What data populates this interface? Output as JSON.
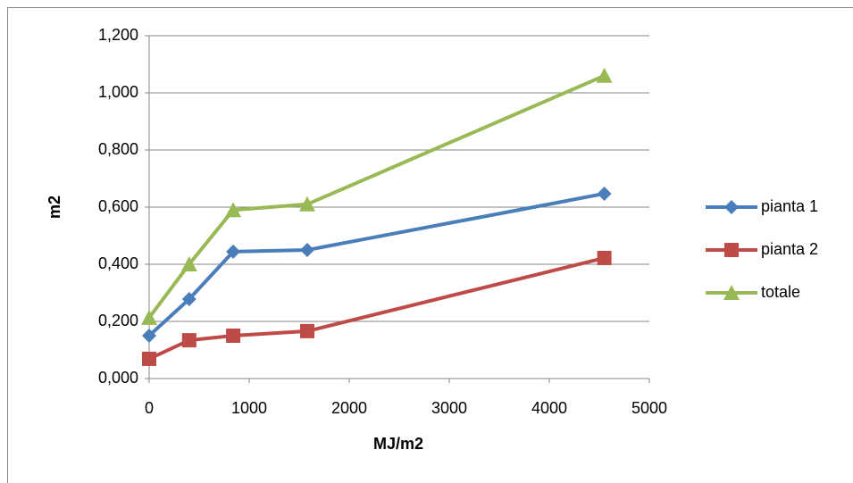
{
  "chart_data": {
    "type": "line",
    "x_label": "MJ/m2",
    "y_label": "m2",
    "x": [
      0,
      400,
      840,
      1580,
      4550
    ],
    "series": [
      {
        "name": "pianta 1",
        "color": "#4a7ebb",
        "marker": "diamond",
        "values": [
          0.15,
          0.278,
          0.444,
          0.45,
          0.647
        ]
      },
      {
        "name": "pianta 2",
        "color": "#be4b48",
        "marker": "square",
        "values": [
          0.069,
          0.134,
          0.15,
          0.166,
          0.422
        ]
      },
      {
        "name": "totale",
        "color": "#98b954",
        "marker": "triangle",
        "values": [
          0.213,
          0.4,
          0.59,
          0.61,
          1.06
        ]
      }
    ],
    "xlim": [
      0,
      5000
    ],
    "xticks": [
      0,
      1000,
      2000,
      3000,
      4000,
      5000
    ],
    "ylim": [
      0,
      1.2
    ],
    "yticks": [
      {
        "value": 0,
        "label": "0,000"
      },
      {
        "value": 0.2,
        "label": "0,200"
      },
      {
        "value": 0.4,
        "label": "0,400"
      },
      {
        "value": 0.6,
        "label": "0,600"
      },
      {
        "value": 0.8,
        "label": "0,800"
      },
      {
        "value": 1.0,
        "label": "1,000"
      },
      {
        "value": 1.2,
        "label": "1,200"
      }
    ],
    "grid": true,
    "legend": "right"
  }
}
